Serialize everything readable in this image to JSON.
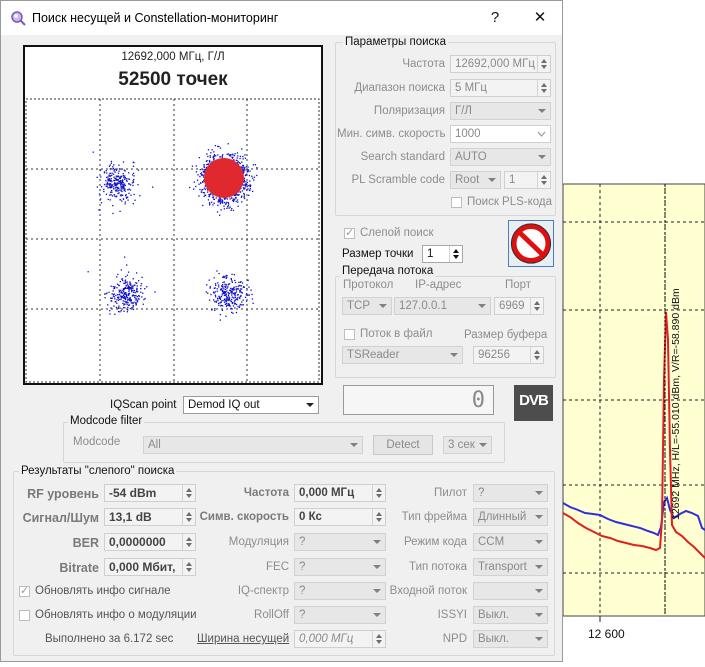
{
  "window": {
    "title": "Поиск несущей и Constellation-мониторинг",
    "help_button": "?",
    "close_button": "✕"
  },
  "constellation": {
    "freq_label": "12692,000 МГц, Г/Л",
    "points_label": "52500 точек",
    "colors": {
      "outer": "#1010c8",
      "inner": "#e0282f"
    }
  },
  "search_params": {
    "title": "Параметры поиска",
    "frequency": {
      "label": "Частота",
      "value": "12692,000 МГц"
    },
    "range": {
      "label": "Диапазон поиска",
      "value": "5 МГц"
    },
    "polarization": {
      "label": "Поляризация",
      "value": "Г/Л"
    },
    "min_sym_rate": {
      "label": "Мин. симв. скорость",
      "value": "1000"
    },
    "search_standard": {
      "label": "Search standard",
      "value": "AUTO"
    },
    "pl_scramble": {
      "label": "PL Scramble code",
      "mode": "Root",
      "value": "1"
    },
    "pls_search": {
      "label": "Поиск PLS-кода",
      "checked": false
    }
  },
  "blind_search": {
    "label": "Слепой поиск",
    "checked": true
  },
  "point_size": {
    "label": "Размер точки",
    "value": "1"
  },
  "stop_icon": "stop-icon",
  "stream": {
    "title": "Передача потока",
    "protocol_label": "Протокол",
    "ip_label": "IP-адрес",
    "port_label": "Порт",
    "protocol": "TCP",
    "ip": "127.0.0.1",
    "port": "6969",
    "to_file": {
      "label": "Поток в файл",
      "checked": false
    },
    "buffer_label": "Размер буфера",
    "reader": "TSReader",
    "buffer": "96256"
  },
  "counter": "0",
  "dvb_logo": "DVB",
  "iqscan": {
    "label": "IQScan point",
    "value": "Demod IQ out"
  },
  "modcode_filter": {
    "title": "Modcode filter",
    "label": "Modcode",
    "value": "All",
    "detect_button": "Detect",
    "interval": "3 сек"
  },
  "results": {
    "title": "Результаты \"слепого\" поиска",
    "rf_level": {
      "label": "RF уровень",
      "value": "-54 dBm"
    },
    "snr": {
      "label": "Сигнал/Шум",
      "value": "13,1 dB"
    },
    "ber": {
      "label": "BER",
      "value": "0,0000000"
    },
    "bitrate": {
      "label": "Bitrate",
      "value": "0,000 Мбит,"
    },
    "frequency": {
      "label": "Частота",
      "value": "0,000 МГц"
    },
    "sym_rate": {
      "label": "Симв. скорость",
      "value": "0 Кс"
    },
    "modulation": {
      "label": "Модуляция",
      "value": "?"
    },
    "fec": {
      "label": "FEC",
      "value": "?"
    },
    "iq_spectrum": {
      "label": "IQ-спектр",
      "value": "?"
    },
    "rolloff": {
      "label": "RollOff",
      "value": "?"
    },
    "carrier_width": {
      "label": "Ширина несущей",
      "value": "0,000 МГц"
    },
    "pilot": {
      "label": "Пилот",
      "value": "?"
    },
    "frame_type": {
      "label": "Тип фрейма",
      "value": "Длинный"
    },
    "code_mode": {
      "label": "Режим кода",
      "value": "CCM"
    },
    "stream_type": {
      "label": "Тип потока",
      "value": "Transport"
    },
    "input_stream": {
      "label": "Входной поток",
      "value": ""
    },
    "issyi": {
      "label": "ISSYI",
      "value": "Выкл."
    },
    "npd": {
      "label": "NPD",
      "value": "Выкл."
    },
    "update_signal": {
      "label": "Обновлять инфо сигнале",
      "checked": true
    },
    "update_modulation": {
      "label": "Обновлять инфо о модуляции",
      "checked": false
    },
    "elapsed": "Выполнено за 6.172 sec"
  },
  "background_chart": {
    "marker_label": "12692 MHz, H/L=-55.010 dBm, V/R=-58.890 dBm",
    "x_tick": "12 600"
  }
}
